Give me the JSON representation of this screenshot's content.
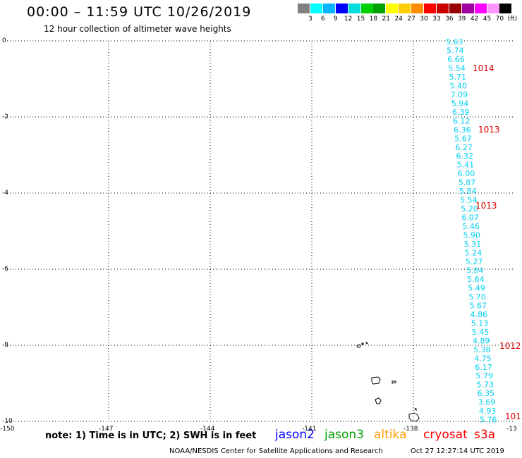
{
  "title": "00:00 – 11:59 UTC 10/26/2019",
  "subtitle": "12 hour collection of altimeter wave heights",
  "scale": {
    "unit": "(ft)",
    "colors": [
      "#808080",
      "#00ffff",
      "#00b4ff",
      "#0000ff",
      "#00dcdc",
      "#00d000",
      "#00a000",
      "#ffff00",
      "#ffcc00",
      "#ff8c00",
      "#ff0000",
      "#c80000",
      "#960000",
      "#a000a0",
      "#ff00ff",
      "#ff96ff",
      "#000000"
    ],
    "labels": [
      "3",
      "6",
      "9",
      "12",
      "15",
      "18",
      "21",
      "24",
      "27",
      "30",
      "33",
      "36",
      "39",
      "42",
      "45",
      "70"
    ]
  },
  "axes": {
    "lat_labels": [
      "0",
      "-2",
      "-4",
      "-6",
      "-8",
      "-10"
    ],
    "lon_labels": [
      "-150",
      "-147",
      "-144",
      "-141",
      "-138",
      "-13"
    ]
  },
  "wave_heights": {
    "color": "#00d0f0",
    "values": [
      "5.63",
      "5.74",
      "6.66",
      "5.54",
      "5.71",
      "5.40",
      "7.09",
      "5.94",
      "6.39",
      "6.12",
      "6.36",
      "5.67",
      "6.27",
      "6.32",
      "5.41",
      "6.00",
      "5.87",
      "5.84",
      "5.54",
      "5.20",
      "6.07",
      "5.46",
      "5.90",
      "5.31",
      "5.24",
      "5.27",
      "5.84",
      "5.64",
      "5.49",
      "5.70",
      "5.67",
      "4.86",
      "5.13",
      "5.45",
      "4.89",
      "5.38",
      "4.75",
      "6.17",
      "5.79",
      "5.73",
      "6.35",
      "3.69",
      "4.93",
      "5.76"
    ]
  },
  "pressure_labels": {
    "color": "#dd0000",
    "values": [
      "1014",
      "1013",
      "1013",
      "1012",
      "101"
    ]
  },
  "note": "note:  1) Time is in UTC;  2) SWH is in feet",
  "satellites": [
    {
      "name": "jason2",
      "color": "#0000ff"
    },
    {
      "name": "jason3",
      "color": "#00a000"
    },
    {
      "name": "altika",
      "color": "#ff9900"
    },
    {
      "name": "cryosat",
      "color": "#ff0000"
    },
    {
      "name": "s3a",
      "color": "#ff0000"
    }
  ],
  "credit": "NOAA/NESDIS Center for Satellite Applications and Research",
  "timestamp": "Oct 27 12:27:14 UTC 2019"
}
